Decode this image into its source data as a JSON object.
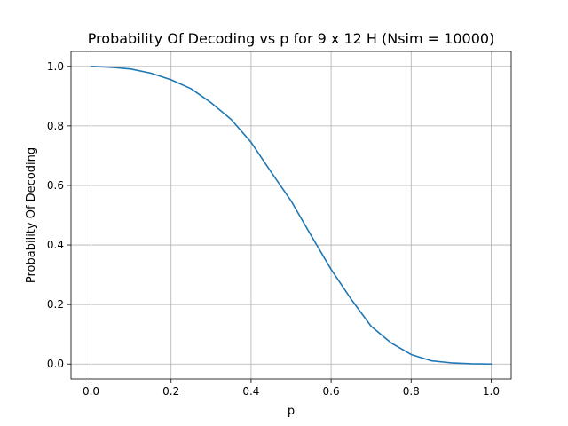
{
  "chart_data": {
    "type": "line",
    "title": "Probability Of Decoding vs p for 9 x 12 H (Nsim = 10000)",
    "xlabel": "p",
    "ylabel": "Probability Of Decoding",
    "xlim": [
      -0.05,
      1.05
    ],
    "ylim": [
      -0.05,
      1.05
    ],
    "xticks": [
      "0.0",
      "0.2",
      "0.4",
      "0.6",
      "0.8",
      "1.0"
    ],
    "yticks": [
      "0.0",
      "0.2",
      "0.4",
      "0.6",
      "0.8",
      "1.0"
    ],
    "grid": true,
    "legend": false,
    "series": [
      {
        "color": "#1f77b4",
        "x": [
          0.0,
          0.05,
          0.1,
          0.15,
          0.2,
          0.25,
          0.3,
          0.35,
          0.4,
          0.45,
          0.5,
          0.55,
          0.6,
          0.65,
          0.7,
          0.75,
          0.8,
          0.85,
          0.9,
          0.95,
          1.0
        ],
        "y": [
          1.0,
          0.997,
          0.991,
          0.977,
          0.955,
          0.925,
          0.878,
          0.822,
          0.745,
          0.645,
          0.548,
          0.432,
          0.318,
          0.218,
          0.127,
          0.071,
          0.032,
          0.011,
          0.004,
          0.001,
          0.0
        ]
      }
    ]
  }
}
